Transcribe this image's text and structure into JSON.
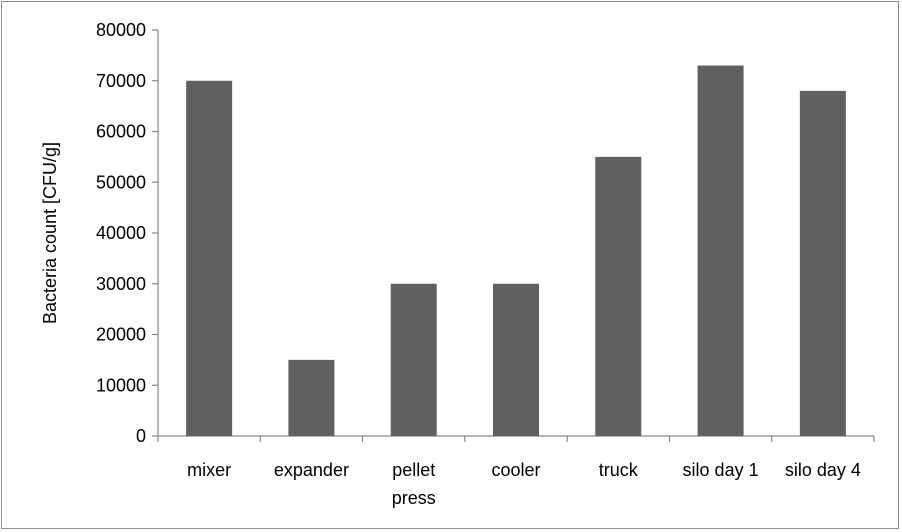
{
  "chart_data": {
    "type": "bar",
    "title": "",
    "xlabel": "",
    "ylabel": "Bacteria count [CFU/g]",
    "categories": [
      [
        "mixer"
      ],
      [
        "expander"
      ],
      [
        "pellet",
        "press"
      ],
      [
        "cooler"
      ],
      [
        "truck"
      ],
      [
        "silo day 1"
      ],
      [
        "silo day 4"
      ]
    ],
    "values": [
      70000,
      15000,
      30000,
      30000,
      55000,
      73000,
      68000
    ],
    "ylim": [
      0,
      80000
    ],
    "yticks": [
      0,
      10000,
      20000,
      30000,
      40000,
      50000,
      60000,
      70000,
      80000
    ],
    "grid": false,
    "legend": "none",
    "bar_color": "#606060",
    "axis_color": "#868686"
  }
}
